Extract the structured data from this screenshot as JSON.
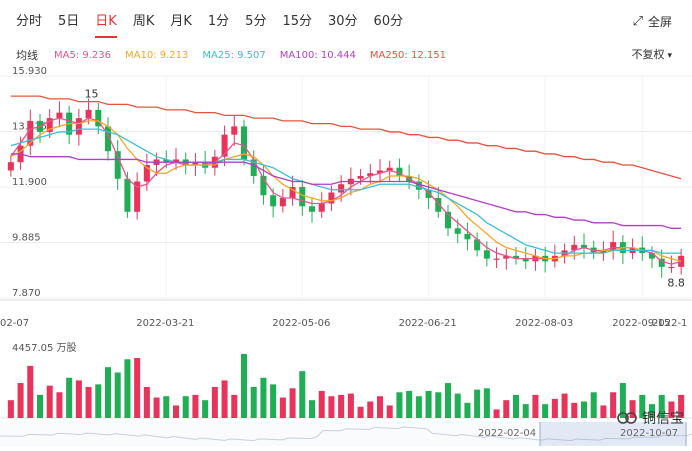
{
  "tabs": [
    {
      "label": "分时",
      "active": false
    },
    {
      "label": "5日",
      "active": false
    },
    {
      "label": "日K",
      "active": true
    },
    {
      "label": "周K",
      "active": false
    },
    {
      "label": "月K",
      "active": false
    },
    {
      "label": "1分",
      "active": false
    },
    {
      "label": "5分",
      "active": false
    },
    {
      "label": "15分",
      "active": false
    },
    {
      "label": "30分",
      "active": false
    },
    {
      "label": "60分",
      "active": false
    }
  ],
  "toolbar": {
    "fullscreen_label": "全屏",
    "fullscreen_icon": "expand-icon"
  },
  "ma_row": {
    "label": "均线",
    "items": [
      {
        "name": "MA5",
        "text": "MA5:  9.236",
        "color": "#e8538f"
      },
      {
        "name": "MA10",
        "text": "MA10:  9.213",
        "color": "#f5a623"
      },
      {
        "name": "MA25",
        "text": "MA25:  9.507",
        "color": "#3bbfd6"
      },
      {
        "name": "MA100",
        "text": "MA100:  10.444",
        "color": "#b03fc7"
      },
      {
        "name": "MA250",
        "text": "MA250:  12.151",
        "color": "#e5533c"
      }
    ]
  },
  "adjust": {
    "label": "不复权",
    "icon": "chevron-down-icon"
  },
  "volume_label": "4457.05 万股",
  "navigator": {
    "start_date": "2022-02-04",
    "end_date": "2022-10-07"
  },
  "brand": {
    "name": "铜信宝"
  },
  "colors": {
    "up": "#e8335a",
    "down": "#1fae54",
    "grid": "#ececec"
  },
  "chart_data": {
    "type": "candlestick",
    "y_ticks": [
      "15.930",
      "13.915",
      "11.900",
      "9.885",
      "7.870"
    ],
    "ylim": [
      7.87,
      15.93
    ],
    "x_ticks": [
      "02-07",
      "2022-03-21",
      "2022-05-06",
      "2022-06-21",
      "2022-08-03",
      "2022-09-15",
      "2022-1"
    ],
    "annotations": [
      {
        "text": "15",
        "value": 15.0
      },
      {
        "text": "8.8",
        "value": 8.8
      }
    ],
    "close_points": [
      [
        "02-07",
        12.8
      ],
      [
        "",
        13.4
      ],
      [
        "",
        14.3
      ],
      [
        "",
        13.9
      ],
      [
        "",
        14.4
      ],
      [
        "",
        14.6
      ],
      [
        "",
        13.8
      ],
      [
        "",
        14.4
      ],
      [
        "",
        14.7
      ],
      [
        "",
        14.1
      ],
      [
        "",
        13.2
      ],
      [
        "",
        12.2
      ],
      [
        "",
        11.0
      ],
      [
        "",
        12.1
      ],
      [
        "",
        12.7
      ],
      [
        "",
        12.9
      ],
      [
        "2022-03-21",
        12.8
      ],
      [
        "",
        12.9
      ],
      [
        "",
        12.7
      ],
      [
        "",
        12.8
      ],
      [
        "",
        12.6
      ],
      [
        "",
        13.0
      ],
      [
        "",
        13.8
      ],
      [
        "",
        14.1
      ],
      [
        "",
        12.9
      ],
      [
        "",
        12.3
      ],
      [
        "",
        11.6
      ],
      [
        "",
        11.2
      ],
      [
        "",
        11.5
      ],
      [
        "",
        11.9
      ],
      [
        "2022-05-06",
        11.2
      ],
      [
        "",
        11.0
      ],
      [
        "",
        11.3
      ],
      [
        "",
        11.7
      ],
      [
        "",
        12.0
      ],
      [
        "",
        12.2
      ],
      [
        "",
        12.3
      ],
      [
        "",
        12.4
      ],
      [
        "",
        12.5
      ],
      [
        "",
        12.6
      ],
      [
        "",
        12.3
      ],
      [
        "",
        12.1
      ],
      [
        "",
        11.8
      ],
      [
        "2022-06-21",
        11.5
      ],
      [
        "",
        11.0
      ],
      [
        "",
        10.4
      ],
      [
        "",
        10.2
      ],
      [
        "",
        10.0
      ],
      [
        "",
        9.6
      ],
      [
        "",
        9.3
      ],
      [
        "",
        9.3
      ],
      [
        "",
        9.4
      ],
      [
        "",
        9.3
      ],
      [
        "",
        9.2
      ],
      [
        "",
        9.4
      ],
      [
        "2022-08-03",
        9.2
      ],
      [
        "",
        9.4
      ],
      [
        "",
        9.6
      ],
      [
        "",
        9.8
      ],
      [
        "",
        9.7
      ],
      [
        "",
        9.5
      ],
      [
        "",
        9.6
      ],
      [
        "",
        9.9
      ],
      [
        "",
        9.5
      ],
      [
        "",
        9.7
      ],
      [
        "2022-09-15",
        9.5
      ],
      [
        "",
        9.3
      ],
      [
        "",
        9.0
      ],
      [
        "",
        9.0
      ],
      [
        "",
        9.4
      ]
    ],
    "ma_series": [
      {
        "name": "MA5",
        "color": "#e8538f",
        "values": [
          13.0,
          13.5,
          14.0,
          14.1,
          14.3,
          14.4,
          14.3,
          14.2,
          14.4,
          14.3,
          13.8,
          13.0,
          12.2,
          11.9,
          12.0,
          12.4,
          12.7,
          12.8,
          12.7,
          12.7,
          12.7,
          12.8,
          13.1,
          13.5,
          13.4,
          12.9,
          12.2,
          11.7,
          11.5,
          11.5,
          11.4,
          11.3,
          11.3,
          11.4,
          11.6,
          11.9,
          12.1,
          12.3,
          12.4,
          12.5,
          12.4,
          12.2,
          12.0,
          11.7,
          11.3,
          10.9,
          10.6,
          10.3,
          10.0,
          9.7,
          9.5,
          9.4,
          9.3,
          9.3,
          9.3,
          9.3,
          9.3,
          9.4,
          9.6,
          9.7,
          9.6,
          9.6,
          9.7,
          9.7,
          9.7,
          9.6,
          9.5,
          9.2,
          9.1,
          9.2
        ]
      },
      {
        "name": "MA10",
        "color": "#f5a623",
        "values": [
          13.0,
          13.2,
          13.5,
          13.8,
          14.0,
          14.1,
          14.2,
          14.2,
          14.3,
          14.3,
          14.1,
          13.8,
          13.3,
          12.9,
          12.6,
          12.4,
          12.4,
          12.6,
          12.7,
          12.7,
          12.7,
          12.7,
          12.9,
          13.0,
          13.1,
          13.0,
          12.7,
          12.3,
          12.0,
          11.8,
          11.6,
          11.5,
          11.4,
          11.4,
          11.5,
          11.7,
          11.8,
          12.0,
          12.1,
          12.3,
          12.3,
          12.3,
          12.2,
          12.0,
          11.8,
          11.5,
          11.2,
          10.8,
          10.5,
          10.2,
          9.9,
          9.7,
          9.6,
          9.5,
          9.4,
          9.3,
          9.3,
          9.4,
          9.4,
          9.5,
          9.5,
          9.6,
          9.6,
          9.7,
          9.7,
          9.6,
          9.6,
          9.4,
          9.3,
          9.2
        ]
      },
      {
        "name": "MA25",
        "color": "#3bbfd6",
        "values": [
          13.4,
          13.5,
          13.6,
          13.7,
          13.8,
          13.9,
          13.9,
          14.0,
          14.0,
          14.0,
          13.9,
          13.8,
          13.6,
          13.4,
          13.2,
          13.0,
          12.9,
          12.8,
          12.8,
          12.8,
          12.8,
          12.8,
          12.9,
          12.9,
          12.9,
          12.8,
          12.7,
          12.6,
          12.4,
          12.2,
          12.1,
          12.0,
          11.9,
          11.8,
          11.8,
          11.8,
          11.8,
          11.9,
          12.0,
          12.0,
          12.0,
          12.0,
          11.9,
          11.8,
          11.7,
          11.5,
          11.3,
          11.1,
          10.9,
          10.6,
          10.4,
          10.2,
          10.0,
          9.8,
          9.7,
          9.6,
          9.5,
          9.5,
          9.5,
          9.5,
          9.5,
          9.5,
          9.6,
          9.6,
          9.6,
          9.6,
          9.6,
          9.5,
          9.5,
          9.5
        ]
      },
      {
        "name": "MA100",
        "color": "#b03fc7",
        "values": [
          13.1,
          13.1,
          13.0,
          13.0,
          13.0,
          13.0,
          13.0,
          12.9,
          12.9,
          12.9,
          12.9,
          12.9,
          12.9,
          12.9,
          12.8,
          12.8,
          12.8,
          12.8,
          12.8,
          12.8,
          12.8,
          12.8,
          12.8,
          12.8,
          12.8,
          12.7,
          12.5,
          12.3,
          12.2,
          12.1,
          12.1,
          12.0,
          12.0,
          12.0,
          12.1,
          12.1,
          12.1,
          12.1,
          12.1,
          12.1,
          12.1,
          12.1,
          12.0,
          11.9,
          11.8,
          11.7,
          11.6,
          11.5,
          11.4,
          11.3,
          11.2,
          11.1,
          11.0,
          11.0,
          10.9,
          10.9,
          10.8,
          10.8,
          10.7,
          10.7,
          10.6,
          10.6,
          10.6,
          10.5,
          10.5,
          10.5,
          10.5,
          10.5,
          10.4,
          10.4
        ]
      },
      {
        "name": "MA250",
        "color": "#e5533c",
        "values": [
          15.2,
          15.2,
          15.2,
          15.2,
          15.1,
          15.1,
          15.1,
          15.0,
          15.0,
          15.0,
          14.9,
          14.9,
          14.9,
          14.8,
          14.8,
          14.8,
          14.7,
          14.7,
          14.7,
          14.6,
          14.6,
          14.6,
          14.5,
          14.5,
          14.5,
          14.4,
          14.4,
          14.4,
          14.3,
          14.3,
          14.3,
          14.2,
          14.2,
          14.2,
          14.1,
          14.1,
          14.0,
          14.0,
          14.0,
          13.9,
          13.9,
          13.8,
          13.8,
          13.7,
          13.7,
          13.6,
          13.6,
          13.5,
          13.5,
          13.4,
          13.4,
          13.3,
          13.3,
          13.2,
          13.2,
          13.1,
          13.1,
          13.0,
          13.0,
          12.9,
          12.9,
          12.8,
          12.8,
          12.7,
          12.7,
          12.6,
          12.5,
          12.4,
          12.3,
          12.2
        ]
      }
    ]
  }
}
